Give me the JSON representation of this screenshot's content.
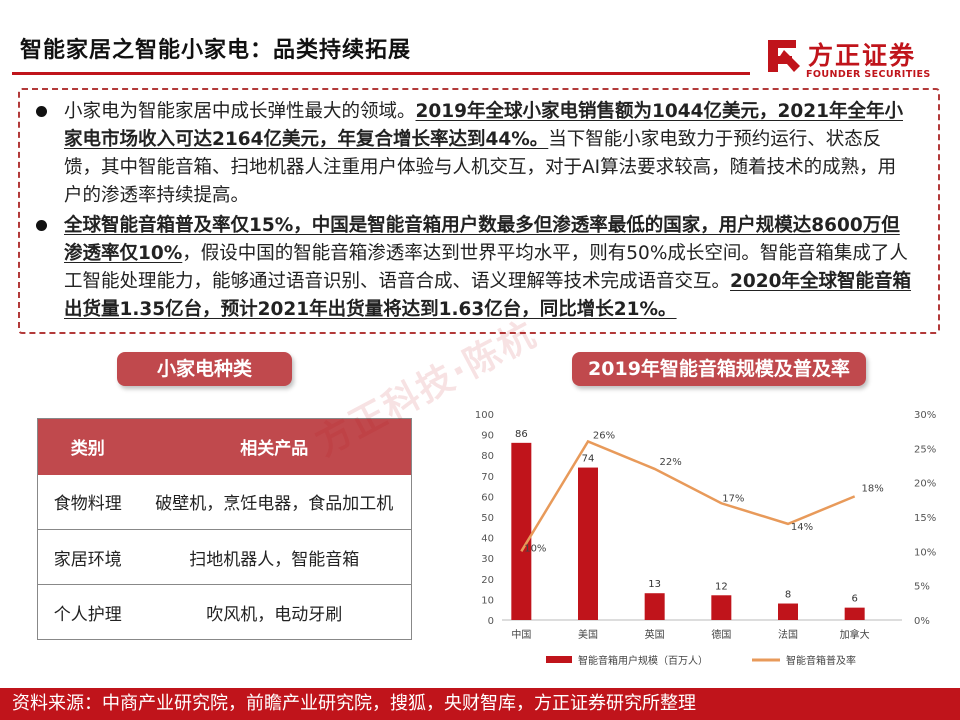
{
  "header": {
    "title": "智能家居之智能小家电：品类持续拓展",
    "logo_cn": "方正证券",
    "logo_en": "FOUNDER SECURITIES",
    "brand_color": "#c0141b"
  },
  "summary": {
    "p1_a": "小家电为智能家居中成长弹性最大的领域。",
    "p1_b": "2019年全球小家电销售额为1044亿美元，2021年全年小家电市场收入可达2164亿美元，年复合增长率达到44%。",
    "p1_c": "当下智能小家电致力于预约运行、状态反馈，其中智能音箱、扫地机器人注重用户体验与人机交互，对于AI算法要求较高，随着技术的成熟，用户的渗透率持续提高。",
    "p2_a": "全球智能音箱普及率仅15%，中国是智能音箱用户数最多但渗透率最低的国家，用户规模达8600万但渗透率仅10%",
    "p2_b": "，假设中国的智能音箱渗透率达到世界平均水平，则有50%成长空间。智能音箱集成了人工智能处理能力，能够通过语音识别、语音合成、语义理解等技术完成语音交互。",
    "p2_c": "2020年全球智能音箱出货量1.35亿台，预计2021年出货量将达到1.63亿台，同比增长21%。"
  },
  "types_panel": {
    "title": "小家电种类",
    "headers": [
      "类别",
      "相关产品"
    ],
    "rows": [
      {
        "category": "食物料理",
        "products": "破壁机，烹饪电器，食品加工机"
      },
      {
        "category": "家居环境",
        "products": "扫地机器人，智能音箱"
      },
      {
        "category": "个人护理",
        "products": "吹风机，电动牙刷"
      }
    ]
  },
  "chart_panel": {
    "title": "2019年智能音箱规模及普及率"
  },
  "watermark": "方正科技·陈杭",
  "chart_data": {
    "type": "bar",
    "categories": [
      "中国",
      "美国",
      "英国",
      "德国",
      "法国",
      "加拿大"
    ],
    "series": [
      {
        "name": "智能音箱用户规模（百万人）",
        "type": "bar",
        "axis": "left",
        "color": "#c0141b",
        "values": [
          86,
          74,
          13,
          12,
          8,
          6
        ],
        "labels": [
          "86",
          "74",
          "13",
          "12",
          "8",
          "6"
        ]
      },
      {
        "name": "智能音箱普及率",
        "type": "line",
        "axis": "right",
        "color": "#e89a5a",
        "values": [
          10,
          26,
          22,
          17,
          14,
          18
        ],
        "labels": [
          "10%",
          "26%",
          "22%",
          "17%",
          "14%",
          "18%"
        ]
      }
    ],
    "y_left": {
      "min": 0,
      "max": 100,
      "step": 10,
      "ticks": [
        "0",
        "10",
        "20",
        "30",
        "40",
        "50",
        "60",
        "70",
        "80",
        "90",
        "100"
      ]
    },
    "y_right": {
      "min": 0,
      "max": 30,
      "step": 5,
      "ticks": [
        "0%",
        "5%",
        "10%",
        "15%",
        "20%",
        "25%",
        "30%"
      ]
    },
    "legend": "bottom",
    "grid": false
  },
  "footer": {
    "source": "资料来源：中商产业研究院，前瞻产业研究院，搜狐，央财智库，方正证券研究所整理"
  }
}
